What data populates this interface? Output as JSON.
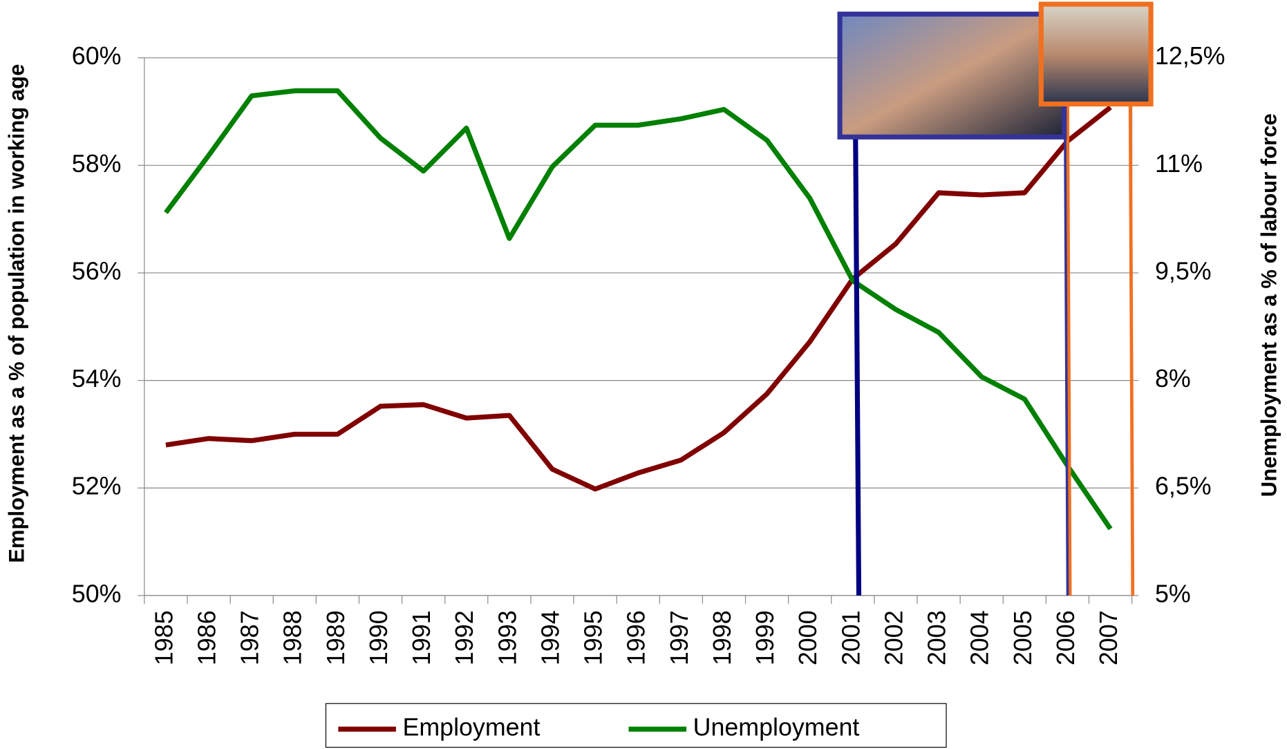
{
  "chart_data": {
    "type": "line",
    "categories": [
      "1985",
      "1986",
      "1987",
      "1988",
      "1989",
      "1990",
      "1991",
      "1992",
      "1993",
      "1994",
      "1995",
      "1996",
      "1997",
      "1998",
      "1999",
      "2000",
      "2001",
      "2002",
      "2003",
      "2004",
      "2005",
      "2006",
      "2007"
    ],
    "series": [
      {
        "name": "Employment",
        "color": "#800000",
        "values": [
          52.8,
          52.92,
          52.88,
          53.0,
          53.0,
          53.52,
          53.55,
          53.3,
          53.35,
          52.35,
          51.98,
          52.28,
          52.52,
          53.03,
          53.75,
          54.72,
          55.89,
          56.54,
          57.49,
          57.45,
          57.49,
          58.45,
          59.08
        ]
      },
      {
        "name": "Unemployment",
        "color": "#008000",
        "axis": "y2",
        "values": [
          10.34,
          11.14,
          11.97,
          12.04,
          12.04,
          11.38,
          10.92,
          11.52,
          9.98,
          10.98,
          11.56,
          11.56,
          11.65,
          11.78,
          11.35,
          10.54,
          9.39,
          8.99,
          8.67,
          8.05,
          7.74,
          6.81,
          5.93
        ]
      }
    ],
    "ylabel": "Employment as a % of population in working age",
    "y2label": "Unemployment as a % of labour force",
    "ylim": [
      50,
      60
    ],
    "yticks": [
      {
        "value": 50,
        "label": "50%"
      },
      {
        "value": 52,
        "label": "52%"
      },
      {
        "value": 54,
        "label": "54%"
      },
      {
        "value": 56,
        "label": "56%"
      },
      {
        "value": 58,
        "label": "58%"
      },
      {
        "value": 60,
        "label": "60%"
      }
    ],
    "y2lim": [
      5,
      12.5
    ],
    "y2ticks": [
      {
        "value": 5,
        "label": "5%"
      },
      {
        "value": 6.5,
        "label": "6,5%"
      },
      {
        "value": 8,
        "label": "8%"
      },
      {
        "value": 9.5,
        "label": "9,5%"
      },
      {
        "value": 11,
        "label": "11%"
      },
      {
        "value": 12.5,
        "label": "12,5%"
      }
    ],
    "grid": true
  }
}
